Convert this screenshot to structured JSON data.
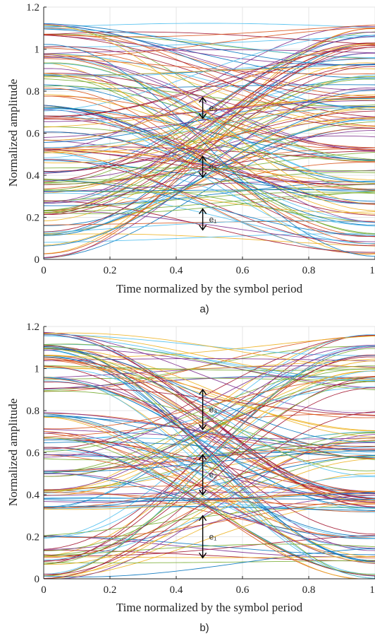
{
  "chart_data": [
    {
      "type": "line",
      "panel_label": "a)",
      "xlabel": "Time normalized by the symbol period",
      "ylabel": "Normalized amplitude",
      "xlim": [
        0,
        1
      ],
      "ylim": [
        0,
        1.2
      ],
      "xticks": [
        "0",
        "0.2",
        "0.4",
        "0.6",
        "0.8",
        "1"
      ],
      "yticks": [
        "0",
        "0.2",
        "0.4",
        "0.6",
        "0.8",
        "1",
        "1.2"
      ],
      "grid": true,
      "description_levels": [
        0.02,
        0.07,
        0.12,
        0.17,
        0.22,
        0.27,
        0.32,
        0.37,
        0.42,
        0.47,
        0.52,
        0.57,
        0.62,
        0.67,
        0.72,
        0.77,
        0.82,
        0.87,
        0.92,
        0.97,
        1.02,
        1.07,
        1.11
      ],
      "annotations": [
        {
          "label": "e₃",
          "x": 0.48,
          "y_low": 0.67,
          "y_high": 0.77
        },
        {
          "label": "e₂",
          "x": 0.48,
          "y_low": 0.39,
          "y_high": 0.49
        },
        {
          "label": "e₁",
          "x": 0.48,
          "y_low": 0.14,
          "y_high": 0.24
        }
      ]
    },
    {
      "type": "line",
      "panel_label": "b)",
      "xlabel": "Time normalized by the symbol period",
      "ylabel": "Normalized amplitude",
      "xlim": [
        0,
        1
      ],
      "ylim": [
        0,
        1.2
      ],
      "xticks": [
        "0",
        "0.2",
        "0.4",
        "0.6",
        "0.8",
        "1"
      ],
      "yticks": [
        "0",
        "0.2",
        "0.4",
        "0.6",
        "0.8",
        "1",
        "1.2"
      ],
      "grid": true,
      "description_levels": [
        0.01,
        0.07,
        0.1,
        0.14,
        0.2,
        0.33,
        0.37,
        0.41,
        0.5,
        0.58,
        0.62,
        0.66,
        0.7,
        0.78,
        0.9,
        0.95,
        1.0,
        1.05,
        1.1,
        1.16
      ],
      "annotations": [
        {
          "label": "e₃",
          "x": 0.48,
          "y_low": 0.71,
          "y_high": 0.9
        },
        {
          "label": "e₂",
          "x": 0.48,
          "y_low": 0.4,
          "y_high": 0.59
        },
        {
          "label": "e₁",
          "x": 0.48,
          "y_low": 0.1,
          "y_high": 0.3
        }
      ]
    }
  ],
  "colors": [
    "#0072BD",
    "#D95319",
    "#EDB120",
    "#7E2F8E",
    "#77AC30",
    "#4DBEEE",
    "#A2142F"
  ]
}
